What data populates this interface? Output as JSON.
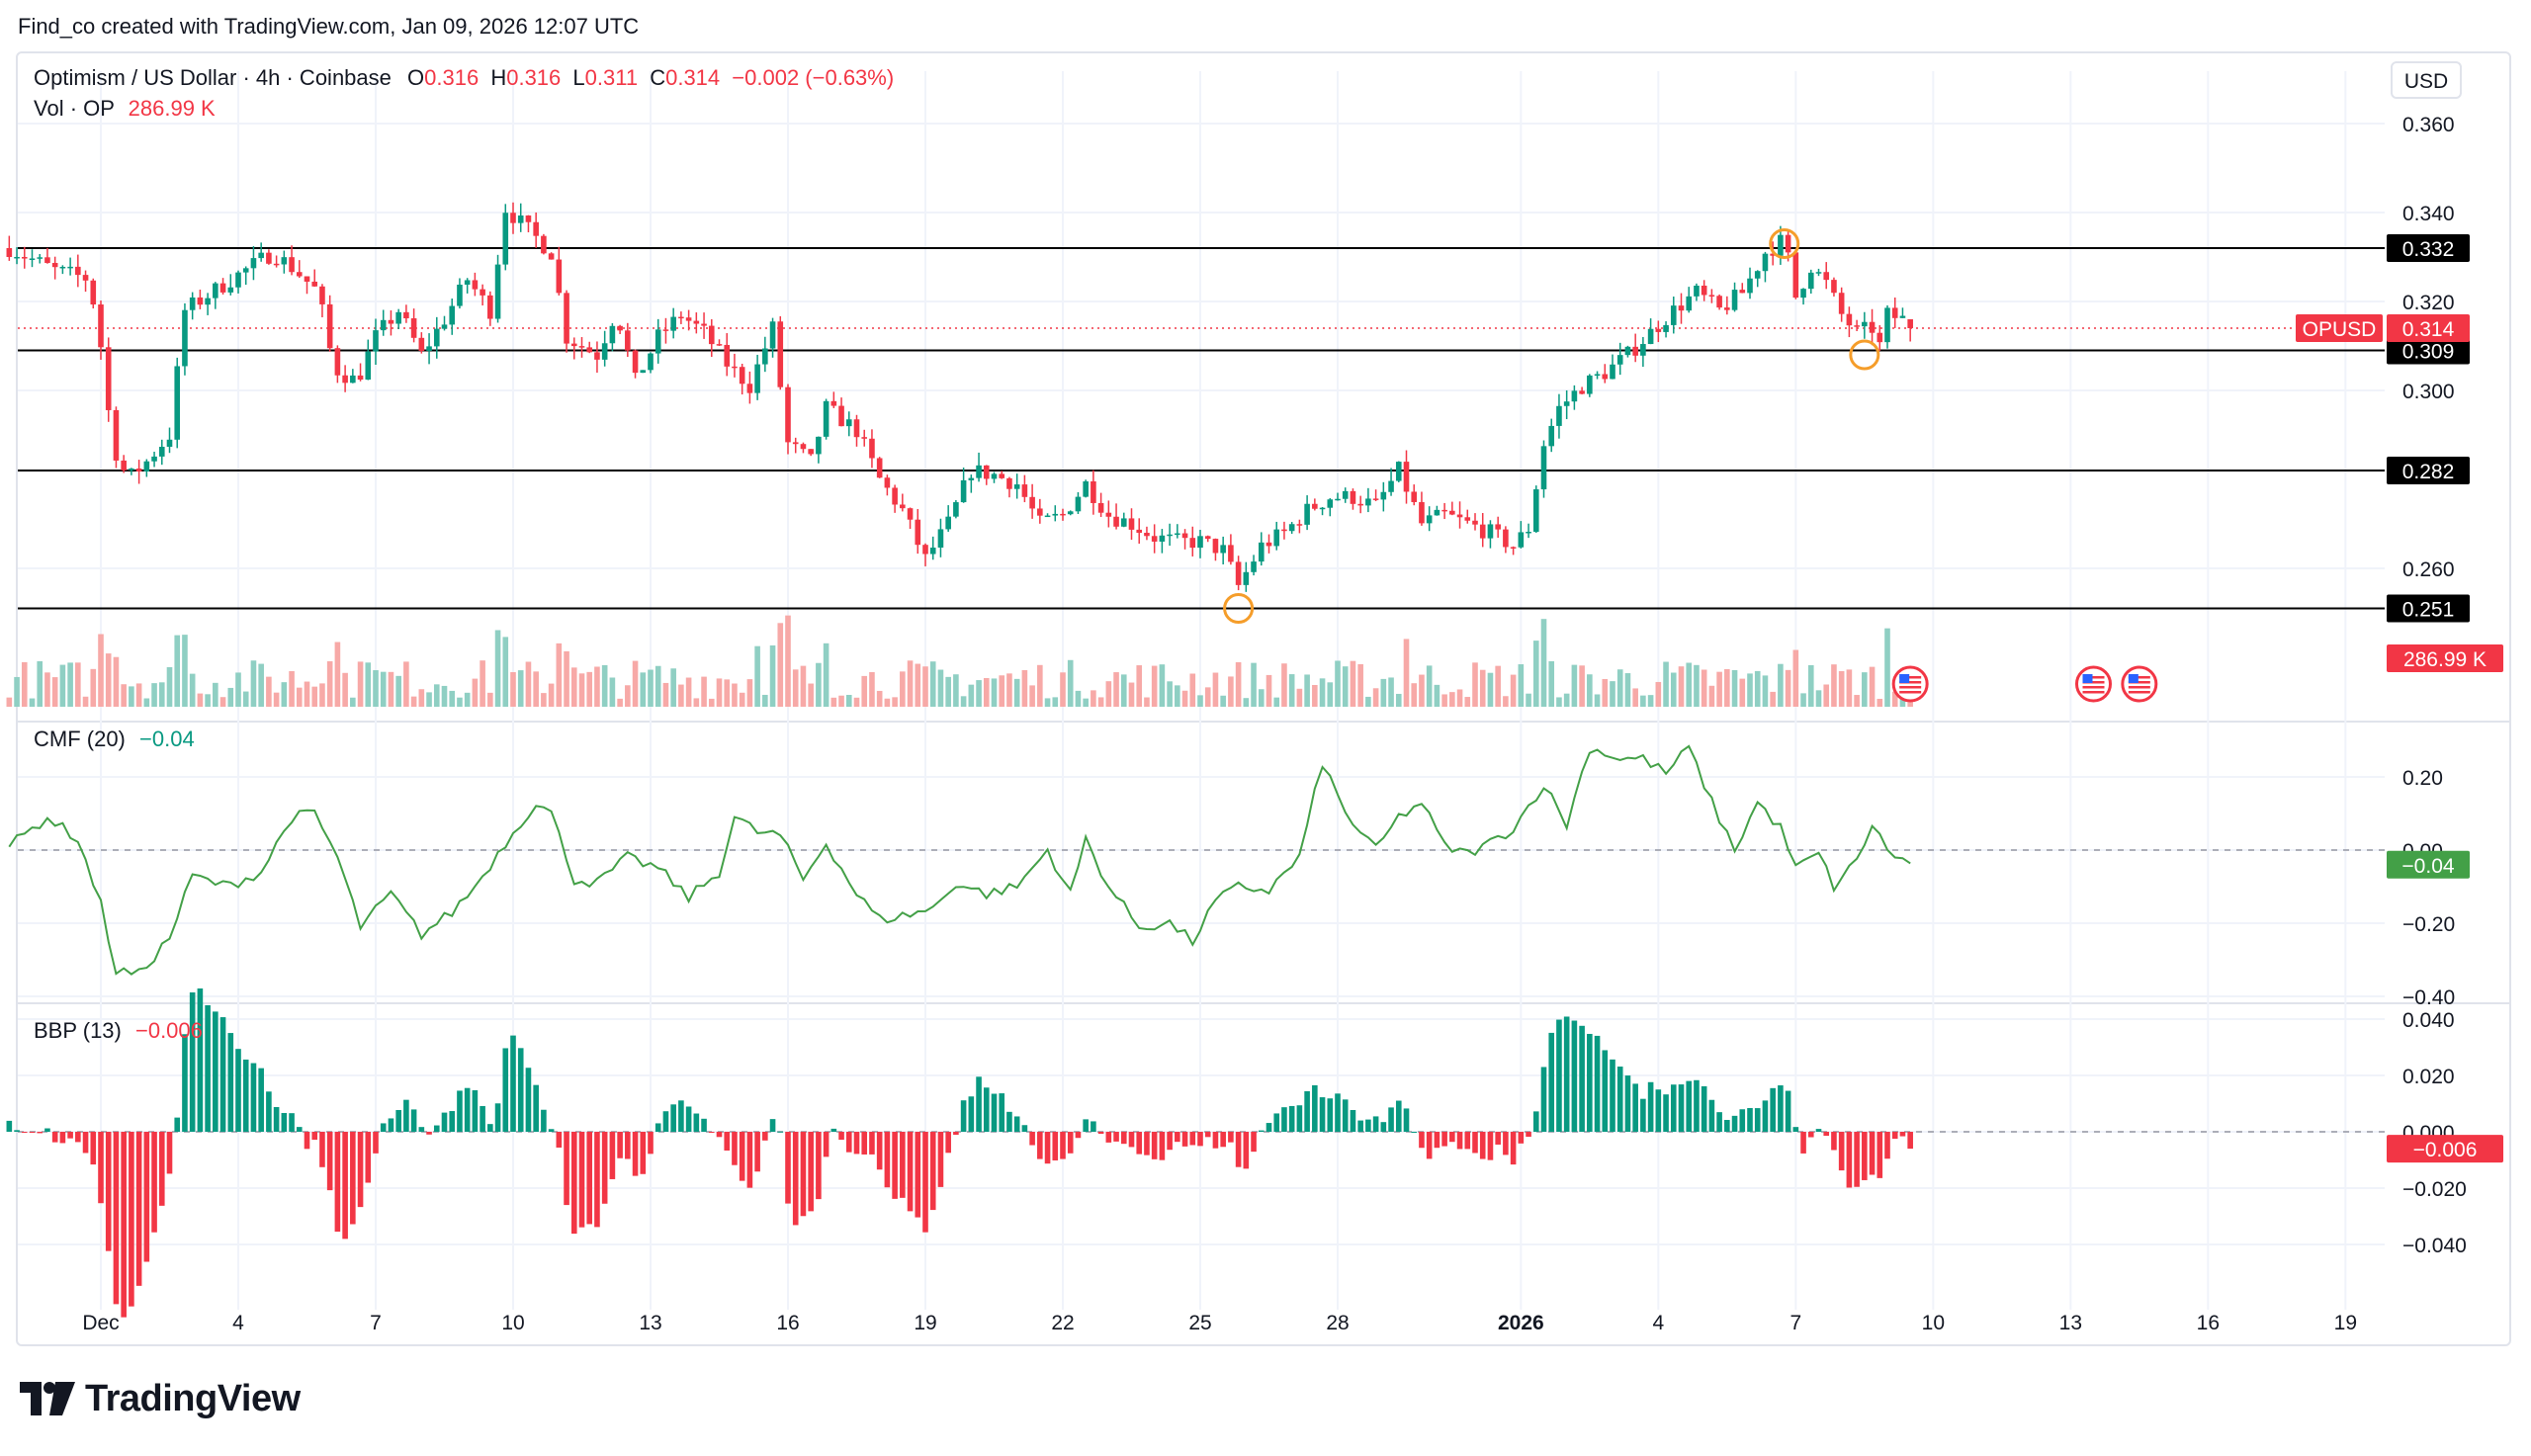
{
  "header": {
    "attribution": "Find_co created with TradingView.com, Jan 09, 2026 12:07 UTC"
  },
  "price_legend": {
    "symbol": "Optimism / US Dollar · 4h · Coinbase",
    "o_label": "O",
    "o": "0.316",
    "h_label": "H",
    "h": "0.316",
    "l_label": "L",
    "l": "0.311",
    "c_label": "C",
    "c": "0.314",
    "change": "−0.002 (−0.63%)"
  },
  "volume_legend": {
    "label": "Vol · OP",
    "value": "286.99 K"
  },
  "cmf_legend": {
    "label": "CMF (20)",
    "value": "−0.04"
  },
  "bbp_legend": {
    "label": "BBP (13)",
    "value": "−0.006"
  },
  "currency_button": "USD",
  "branding": {
    "name": "TradingView"
  },
  "colors": {
    "up": "#089981",
    "down": "#f23645",
    "vol_up": "#8fcfc3",
    "vol_down": "#f7a9a7",
    "cmf_line": "#43a047",
    "level_line": "#000000"
  },
  "chart_data": [
    {
      "type": "candlestick",
      "title": "Optimism / US Dollar · 4h · Coinbase",
      "series_name": "OPUSD",
      "ylim": [
        0.245,
        0.365
      ],
      "y_ticks": [
        "0.360",
        "0.340",
        "0.320",
        "0.300",
        "0.260"
      ],
      "x_tick_labels": [
        "Dec",
        "4",
        "7",
        "10",
        "13",
        "16",
        "19",
        "22",
        "25",
        "28",
        "2026",
        "4",
        "7",
        "10",
        "13",
        "16",
        "19"
      ],
      "x_tick_dates": [
        "2025-12-01",
        "2025-12-04",
        "2025-12-07",
        "2025-12-10",
        "2025-12-13",
        "2025-12-16",
        "2025-12-19",
        "2025-12-22",
        "2025-12-25",
        "2025-12-28",
        "2026-01-01",
        "2026-01-04",
        "2026-01-07",
        "2026-01-10",
        "2026-01-13",
        "2026-01-16",
        "2026-01-19"
      ],
      "close_path": [
        [
          "2025-11-29T00:00",
          0.332
        ],
        [
          "2025-11-30T00:00",
          0.327
        ],
        [
          "2025-11-30T18:00",
          0.325
        ],
        [
          "2025-12-01T00:00",
          0.31
        ],
        [
          "2025-12-01T06:00",
          0.288
        ],
        [
          "2025-12-01T14:00",
          0.28
        ],
        [
          "2025-12-02T00:00",
          0.284
        ],
        [
          "2025-12-02T12:00",
          0.29
        ],
        [
          "2025-12-02T20:00",
          0.318
        ],
        [
          "2025-12-03T10:00",
          0.322
        ],
        [
          "2025-12-04T00:00",
          0.326
        ],
        [
          "2025-12-04T18:00",
          0.331
        ],
        [
          "2025-12-05T06:00",
          0.327
        ],
        [
          "2025-12-05T18:00",
          0.322
        ],
        [
          "2025-12-06T02:00",
          0.305
        ],
        [
          "2025-12-06T14:00",
          0.302
        ],
        [
          "2025-12-07T00:00",
          0.312
        ],
        [
          "2025-12-07T12:00",
          0.318
        ],
        [
          "2025-12-08T00:00",
          0.308
        ],
        [
          "2025-12-08T12:00",
          0.316
        ],
        [
          "2025-12-09T00:00",
          0.325
        ],
        [
          "2025-12-09T12:00",
          0.318
        ],
        [
          "2025-12-09T20:00",
          0.341
        ],
        [
          "2025-12-10T08:00",
          0.336
        ],
        [
          "2025-12-10T20:00",
          0.331
        ],
        [
          "2025-12-11T04:00",
          0.312
        ],
        [
          "2025-12-11T20:00",
          0.308
        ],
        [
          "2025-12-12T06:00",
          0.318
        ],
        [
          "2025-12-12T16:00",
          0.302
        ],
        [
          "2025-12-13T04:00",
          0.312
        ],
        [
          "2025-12-13T16:00",
          0.317
        ],
        [
          "2025-12-14T04:00",
          0.313
        ],
        [
          "2025-12-14T16:00",
          0.306
        ],
        [
          "2025-12-15T04:00",
          0.301
        ],
        [
          "2025-12-15T16:00",
          0.314
        ],
        [
          "2025-12-16T00:00",
          0.288
        ],
        [
          "2025-12-16T12:00",
          0.284
        ],
        [
          "2025-12-16T20:00",
          0.296
        ],
        [
          "2025-12-17T12:00",
          0.291
        ],
        [
          "2025-12-18T00:00",
          0.28
        ],
        [
          "2025-12-18T12:00",
          0.273
        ],
        [
          "2025-12-19T00:00",
          0.262
        ],
        [
          "2025-12-19T12:00",
          0.27
        ],
        [
          "2025-12-20T00:00",
          0.282
        ],
        [
          "2025-12-20T12:00",
          0.281
        ],
        [
          "2025-12-21T00:00",
          0.279
        ],
        [
          "2025-12-21T12:00",
          0.27
        ],
        [
          "2025-12-22T00:00",
          0.272
        ],
        [
          "2025-12-22T12:00",
          0.279
        ],
        [
          "2025-12-23T00:00",
          0.272
        ],
        [
          "2025-12-23T12:00",
          0.27
        ],
        [
          "2025-12-24T00:00",
          0.267
        ],
        [
          "2025-12-24T12:00",
          0.266
        ],
        [
          "2025-12-25T00:00",
          0.266
        ],
        [
          "2025-12-25T12:00",
          0.264
        ],
        [
          "2025-12-25T20:00",
          0.256
        ],
        [
          "2025-12-26T08:00",
          0.265
        ],
        [
          "2025-12-26T20:00",
          0.268
        ],
        [
          "2025-12-27T08:00",
          0.273
        ],
        [
          "2025-12-27T20:00",
          0.276
        ],
        [
          "2025-12-28T08:00",
          0.276
        ],
        [
          "2025-12-28T20:00",
          0.274
        ],
        [
          "2025-12-29T08:00",
          0.282
        ],
        [
          "2025-12-29T20:00",
          0.27
        ],
        [
          "2025-12-30T08:00",
          0.272
        ],
        [
          "2025-12-30T20:00",
          0.27
        ],
        [
          "2025-12-31T08:00",
          0.268
        ],
        [
          "2025-12-31T20:00",
          0.265
        ],
        [
          "2026-01-01T04:00",
          0.269
        ],
        [
          "2026-01-01T12:00",
          0.288
        ],
        [
          "2026-01-01T20:00",
          0.296
        ],
        [
          "2026-01-02T08:00",
          0.301
        ],
        [
          "2026-01-02T20:00",
          0.304
        ],
        [
          "2026-01-03T08:00",
          0.308
        ],
        [
          "2026-01-03T20:00",
          0.313
        ],
        [
          "2026-01-04T08:00",
          0.318
        ],
        [
          "2026-01-04T20:00",
          0.322
        ],
        [
          "2026-01-05T08:00",
          0.318
        ],
        [
          "2026-01-05T20:00",
          0.322
        ],
        [
          "2026-01-06T08:00",
          0.331
        ],
        [
          "2026-01-06T18:00",
          0.334
        ],
        [
          "2026-01-07T00:00",
          0.321
        ],
        [
          "2026-01-07T08:00",
          0.328
        ],
        [
          "2026-01-07T16:00",
          0.324
        ],
        [
          "2026-01-08T00:00",
          0.317
        ],
        [
          "2026-01-08T08:00",
          0.313
        ],
        [
          "2026-01-08T16:00",
          0.314
        ],
        [
          "2026-01-08T20:00",
          0.31
        ],
        [
          "2026-01-09T00:00",
          0.317
        ],
        [
          "2026-01-09T08:00",
          0.316
        ],
        [
          "2026-01-09T12:00",
          0.314
        ]
      ],
      "horizontal_levels": [
        "0.332",
        "0.309",
        "0.282",
        "0.251"
      ],
      "last_price_label": {
        "name": "OPUSD",
        "value": "0.314"
      },
      "markers": [
        {
          "date": "2026-01-06T18:00",
          "value": 0.333
        },
        {
          "date": "2026-01-08T12:00",
          "value": 0.308
        },
        {
          "date": "2025-12-25T20:00",
          "value": 0.251
        }
      ],
      "event_flags_dates": [
        "2026-01-09T12:00",
        "2026-01-13T12:00",
        "2026-01-14T12:00"
      ],
      "volume": {
        "name": "Vol · OP",
        "last_value": "286.99 K"
      }
    },
    {
      "type": "line",
      "title": "CMF (20)",
      "ylim": [
        -0.42,
        0.32
      ],
      "y_ticks": [
        "0.20",
        "0.00",
        "−0.20",
        "−0.40"
      ],
      "zero_line": true,
      "last_value": "−0.04",
      "points": [
        [
          "2025-11-29T00:00",
          0.01
        ],
        [
          "2025-11-29T20:00",
          0.09
        ],
        [
          "2025-11-30T12:00",
          0.03
        ],
        [
          "2025-12-01T00:00",
          -0.15
        ],
        [
          "2025-12-01T08:00",
          -0.33
        ],
        [
          "2025-12-01T20:00",
          -0.34
        ],
        [
          "2025-12-02T12:00",
          -0.24
        ],
        [
          "2025-12-03T00:00",
          -0.07
        ],
        [
          "2025-12-03T18:00",
          -0.1
        ],
        [
          "2025-12-04T12:00",
          -0.06
        ],
        [
          "2025-12-05T04:00",
          0.09
        ],
        [
          "2025-12-05T16:00",
          0.1
        ],
        [
          "2025-12-06T04:00",
          -0.02
        ],
        [
          "2025-12-06T16:00",
          -0.21
        ],
        [
          "2025-12-07T08:00",
          -0.12
        ],
        [
          "2025-12-08T00:00",
          -0.23
        ],
        [
          "2025-12-08T16:00",
          -0.17
        ],
        [
          "2025-12-09T04:00",
          -0.1
        ],
        [
          "2025-12-09T20:00",
          0.02
        ],
        [
          "2025-12-10T12:00",
          0.13
        ],
        [
          "2025-12-10T20:00",
          0.1
        ],
        [
          "2025-12-11T08:00",
          -0.08
        ],
        [
          "2025-12-11T20:00",
          -0.09
        ],
        [
          "2025-12-12T12:00",
          -0.02
        ],
        [
          "2025-12-13T04:00",
          -0.05
        ],
        [
          "2025-12-13T20:00",
          -0.13
        ],
        [
          "2025-12-14T12:00",
          -0.06
        ],
        [
          "2025-12-14T20:00",
          0.09
        ],
        [
          "2025-12-15T08:00",
          0.05
        ],
        [
          "2025-12-15T20:00",
          0.04
        ],
        [
          "2025-12-16T08:00",
          -0.08
        ],
        [
          "2025-12-16T20:00",
          0.02
        ],
        [
          "2025-12-17T12:00",
          -0.12
        ],
        [
          "2025-12-18T00:00",
          -0.19
        ],
        [
          "2025-12-18T12:00",
          -0.18
        ],
        [
          "2025-12-19T04:00",
          -0.16
        ],
        [
          "2025-12-19T16:00",
          -0.09
        ],
        [
          "2025-12-20T08:00",
          -0.12
        ],
        [
          "2025-12-21T00:00",
          -0.1
        ],
        [
          "2025-12-21T16:00",
          0.0
        ],
        [
          "2025-12-22T04:00",
          -0.12
        ],
        [
          "2025-12-22T12:00",
          0.03
        ],
        [
          "2025-12-23T00:00",
          -0.1
        ],
        [
          "2025-12-23T16:00",
          -0.21
        ],
        [
          "2025-12-24T08:00",
          -0.2
        ],
        [
          "2025-12-24T20:00",
          -0.25
        ],
        [
          "2025-12-25T08:00",
          -0.14
        ],
        [
          "2025-12-25T20:00",
          -0.1
        ],
        [
          "2025-12-26T12:00",
          -0.11
        ],
        [
          "2025-12-27T04:00",
          -0.02
        ],
        [
          "2025-12-27T16:00",
          0.24
        ],
        [
          "2025-12-28T04:00",
          0.1
        ],
        [
          "2025-12-28T20:00",
          0.0
        ],
        [
          "2025-12-29T08:00",
          0.09
        ],
        [
          "2025-12-29T20:00",
          0.13
        ],
        [
          "2025-12-30T08:00",
          0.01
        ],
        [
          "2025-12-30T20:00",
          -0.01
        ],
        [
          "2025-12-31T08:00",
          0.02
        ],
        [
          "2025-12-31T20:00",
          0.06
        ],
        [
          "2026-01-01T12:00",
          0.18
        ],
        [
          "2026-01-02T00:00",
          0.07
        ],
        [
          "2026-01-02T12:00",
          0.28
        ],
        [
          "2026-01-03T04:00",
          0.25
        ],
        [
          "2026-01-03T16:00",
          0.25
        ],
        [
          "2026-01-04T04:00",
          0.21
        ],
        [
          "2026-01-04T16:00",
          0.28
        ],
        [
          "2026-01-05T04:00",
          0.13
        ],
        [
          "2026-01-05T16:00",
          0.0
        ],
        [
          "2026-01-06T04:00",
          0.13
        ],
        [
          "2026-01-06T16:00",
          0.06
        ],
        [
          "2026-01-07T00:00",
          -0.05
        ],
        [
          "2026-01-07T12:00",
          -0.01
        ],
        [
          "2026-01-07T20:00",
          -0.1
        ],
        [
          "2026-01-08T08:00",
          -0.03
        ],
        [
          "2026-01-08T16:00",
          0.07
        ],
        [
          "2026-01-09T00:00",
          0.0
        ],
        [
          "2026-01-09T12:00",
          -0.04
        ]
      ]
    },
    {
      "type": "bar",
      "title": "BBP (13)",
      "ylim": [
        -0.052,
        0.042
      ],
      "y_ticks": [
        "0.040",
        "0.020",
        "0.000",
        "−0.020",
        "−0.040"
      ],
      "zero_line": true,
      "last_value": "−0.006"
    }
  ]
}
